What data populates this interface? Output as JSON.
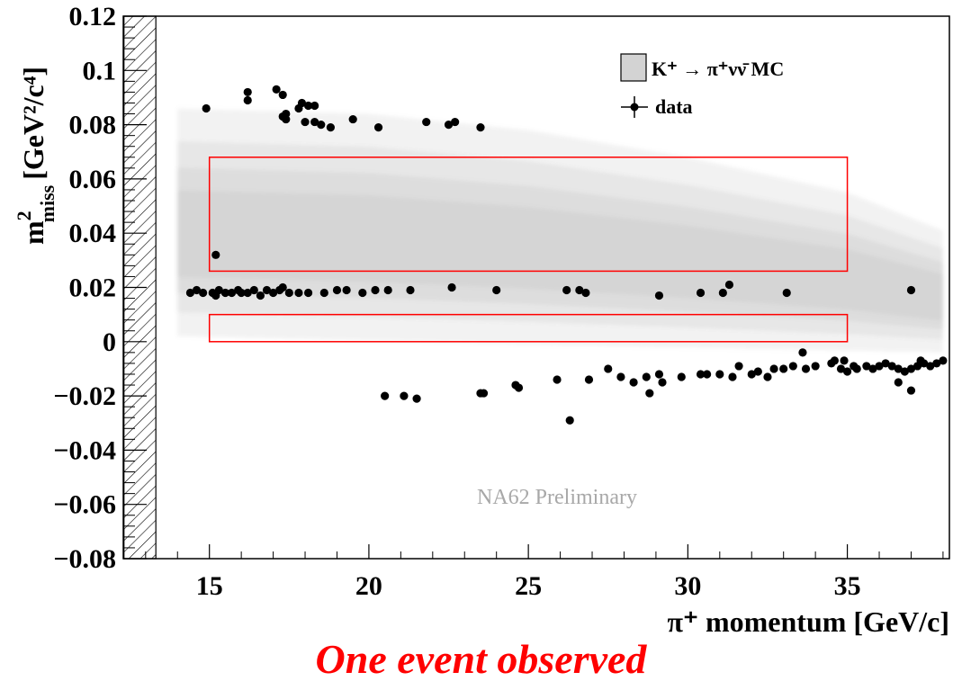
{
  "chart_data": {
    "type": "scatter",
    "xlabel": "π⁺ momentum [GeV/c]",
    "ylabel_main": "m",
    "ylabel_sup": "2",
    "ylabel_sub": "miss",
    "ylabel_units": "[GeV²/c⁴]",
    "xlim": [
      12.3,
      38.2
    ],
    "ylim": [
      -0.08,
      0.12
    ],
    "x_ticks": [
      15,
      20,
      25,
      30,
      35
    ],
    "x_tick_labels": [
      "15",
      "20",
      "25",
      "30",
      "35"
    ],
    "y_ticks": [
      -0.08,
      -0.06,
      -0.04,
      -0.02,
      0,
      0.02,
      0.04,
      0.06,
      0.08,
      0.1,
      0.12
    ],
    "y_tick_labels": [
      "−0.08",
      "−0.06",
      "−0.04",
      "−0.02",
      "0",
      "0.02",
      "0.04",
      "0.06",
      "0.08",
      "0.1",
      "0.12"
    ],
    "excluded_band_x": [
      12.3,
      13.3
    ],
    "signal_regions": [
      {
        "x": [
          15,
          35
        ],
        "y": [
          0.026,
          0.068
        ],
        "color": "#ff0000"
      },
      {
        "x": [
          15,
          35
        ],
        "y": [
          0.0,
          0.01
        ],
        "color": "#ff0000"
      }
    ],
    "legend": {
      "placement": "top-right",
      "entries": [
        {
          "label": "K⁺ → π⁺νν̄ MC",
          "kind": "box",
          "color": "#d3d3d3"
        },
        {
          "label": "data",
          "kind": "marker",
          "color": "#000000"
        }
      ]
    },
    "series": [
      {
        "name": "K⁺ → π⁺νν̄ MC",
        "kind": "density",
        "color": "#808080",
        "x_range": [
          14.0,
          38.2
        ],
        "upper_edge": [
          [
            14.0,
            0.086
          ],
          [
            20,
            0.084
          ],
          [
            25,
            0.078
          ],
          [
            30,
            0.068
          ],
          [
            35,
            0.055
          ],
          [
            38.2,
            0.04
          ]
        ],
        "lower_edge": [
          [
            14.0,
            0.002
          ],
          [
            25,
            -0.001
          ],
          [
            38.2,
            -0.004
          ]
        ]
      },
      {
        "name": "data",
        "kind": "points",
        "color": "#000000",
        "points": [
          [
            14.9,
            0.086
          ],
          [
            16.2,
            0.092
          ],
          [
            16.2,
            0.089
          ],
          [
            17.1,
            0.093
          ],
          [
            17.3,
            0.091
          ],
          [
            17.3,
            0.083
          ],
          [
            17.4,
            0.084
          ],
          [
            17.8,
            0.086
          ],
          [
            17.9,
            0.088
          ],
          [
            18.1,
            0.087
          ],
          [
            18.3,
            0.087
          ],
          [
            17.4,
            0.082
          ],
          [
            18.0,
            0.081
          ],
          [
            18.3,
            0.081
          ],
          [
            18.5,
            0.08
          ],
          [
            18.8,
            0.079
          ],
          [
            19.5,
            0.082
          ],
          [
            20.3,
            0.079
          ],
          [
            21.8,
            0.081
          ],
          [
            22.5,
            0.08
          ],
          [
            22.7,
            0.081
          ],
          [
            23.5,
            0.079
          ],
          [
            15.2,
            0.032
          ],
          [
            14.4,
            0.018
          ],
          [
            14.6,
            0.019
          ],
          [
            14.8,
            0.018
          ],
          [
            15.1,
            0.018
          ],
          [
            15.2,
            0.017
          ],
          [
            15.3,
            0.019
          ],
          [
            15.5,
            0.018
          ],
          [
            15.7,
            0.018
          ],
          [
            15.9,
            0.019
          ],
          [
            16.0,
            0.018
          ],
          [
            16.2,
            0.018
          ],
          [
            16.4,
            0.019
          ],
          [
            16.6,
            0.017
          ],
          [
            16.8,
            0.019
          ],
          [
            17.0,
            0.018
          ],
          [
            17.2,
            0.019
          ],
          [
            17.3,
            0.02
          ],
          [
            17.5,
            0.018
          ],
          [
            17.8,
            0.018
          ],
          [
            18.1,
            0.018
          ],
          [
            18.6,
            0.018
          ],
          [
            19.0,
            0.019
          ],
          [
            19.3,
            0.019
          ],
          [
            19.8,
            0.018
          ],
          [
            20.2,
            0.019
          ],
          [
            20.6,
            0.019
          ],
          [
            21.3,
            0.019
          ],
          [
            22.6,
            0.02
          ],
          [
            24.0,
            0.019
          ],
          [
            26.2,
            0.019
          ],
          [
            26.6,
            0.019
          ],
          [
            26.8,
            0.018
          ],
          [
            29.1,
            0.017
          ],
          [
            30.4,
            0.018
          ],
          [
            31.1,
            0.018
          ],
          [
            31.3,
            0.021
          ],
          [
            33.1,
            0.018
          ],
          [
            37.0,
            0.019
          ],
          [
            20.5,
            -0.02
          ],
          [
            21.1,
            -0.02
          ],
          [
            21.5,
            -0.021
          ],
          [
            23.5,
            -0.019
          ],
          [
            23.6,
            -0.019
          ],
          [
            24.6,
            -0.016
          ],
          [
            24.7,
            -0.017
          ],
          [
            25.9,
            -0.014
          ],
          [
            26.3,
            -0.029
          ],
          [
            26.9,
            -0.014
          ],
          [
            27.5,
            -0.01
          ],
          [
            27.9,
            -0.013
          ],
          [
            28.3,
            -0.015
          ],
          [
            28.7,
            -0.013
          ],
          [
            28.8,
            -0.019
          ],
          [
            29.1,
            -0.012
          ],
          [
            29.2,
            -0.015
          ],
          [
            29.8,
            -0.013
          ],
          [
            30.4,
            -0.012
          ],
          [
            30.6,
            -0.012
          ],
          [
            31.0,
            -0.012
          ],
          [
            31.4,
            -0.013
          ],
          [
            31.6,
            -0.009
          ],
          [
            32.0,
            -0.012
          ],
          [
            32.2,
            -0.011
          ],
          [
            32.5,
            -0.013
          ],
          [
            32.7,
            -0.01
          ],
          [
            33.0,
            -0.01
          ],
          [
            33.3,
            -0.009
          ],
          [
            33.6,
            -0.004
          ],
          [
            33.7,
            -0.01
          ],
          [
            34.0,
            -0.009
          ],
          [
            34.5,
            -0.008
          ],
          [
            34.6,
            -0.007
          ],
          [
            34.8,
            -0.01
          ],
          [
            35.0,
            -0.011
          ],
          [
            35.3,
            -0.01
          ],
          [
            35.6,
            -0.009
          ],
          [
            35.8,
            -0.01
          ],
          [
            36.0,
            -0.009
          ],
          [
            36.2,
            -0.008
          ],
          [
            36.4,
            -0.009
          ],
          [
            36.6,
            -0.01
          ],
          [
            36.8,
            -0.011
          ],
          [
            37.0,
            -0.01
          ],
          [
            37.2,
            -0.009
          ],
          [
            37.4,
            -0.008
          ],
          [
            37.6,
            -0.009
          ],
          [
            37.8,
            -0.008
          ],
          [
            38.0,
            -0.007
          ],
          [
            37.0,
            -0.018
          ],
          [
            36.6,
            -0.015
          ],
          [
            35.2,
            -0.009
          ],
          [
            34.9,
            -0.007
          ],
          [
            37.3,
            -0.007
          ]
        ]
      }
    ],
    "annotations": [
      {
        "text": "NA62 Preliminary",
        "color": "#a8a8a8"
      }
    ]
  },
  "caption": "One event observed"
}
